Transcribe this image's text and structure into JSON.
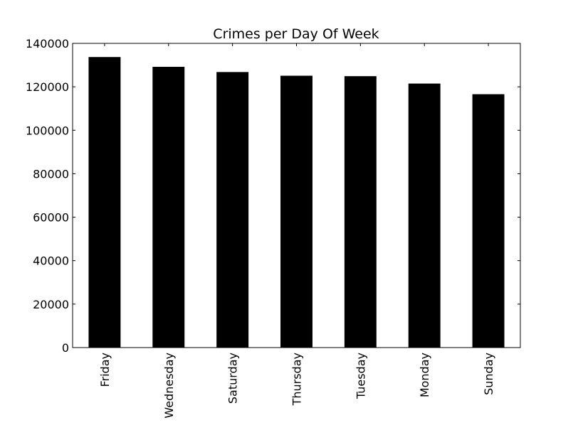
{
  "chart_data": {
    "type": "bar",
    "title": "Crimes per Day Of Week",
    "xlabel": "",
    "ylabel": "",
    "categories": [
      "Friday",
      "Wednesday",
      "Saturday",
      "Thursday",
      "Tuesday",
      "Monday",
      "Sunday"
    ],
    "values": [
      133700,
      129200,
      126800,
      125100,
      124900,
      121500,
      116600
    ],
    "ylim": [
      0,
      140000
    ],
    "yticks": [
      "0",
      "20000",
      "40000",
      "60000",
      "80000",
      "100000",
      "120000",
      "140000"
    ],
    "bar_color": "#000000",
    "grid": false,
    "legend": "none"
  }
}
